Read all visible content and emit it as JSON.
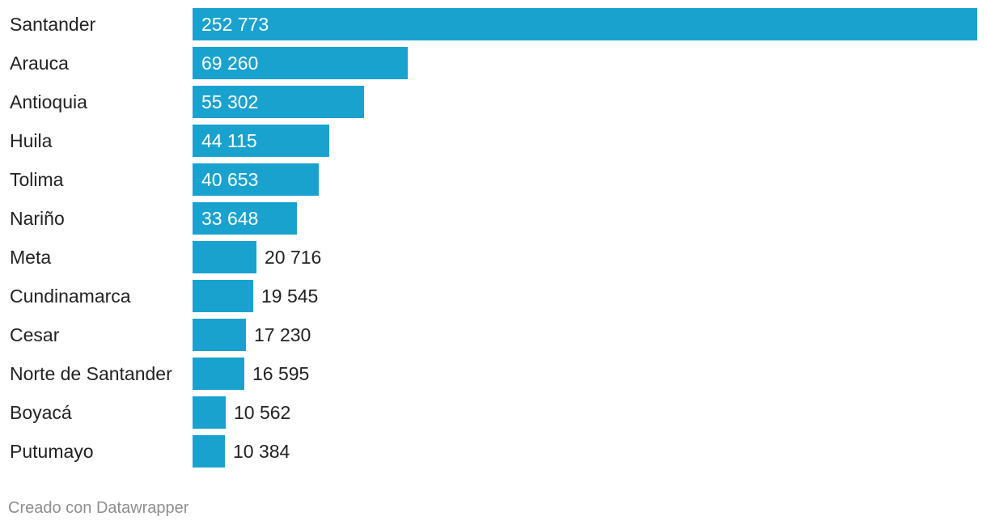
{
  "chart_data": {
    "type": "bar",
    "orientation": "horizontal",
    "title": "",
    "xlabel": "",
    "ylabel": "",
    "xlim": [
      0,
      252773
    ],
    "categories": [
      "Santander",
      "Arauca",
      "Antioquia",
      "Huila",
      "Tolima",
      "Nariño",
      "Meta",
      "Cundinamarca",
      "Cesar",
      "Norte de Santander",
      "Boyacá",
      "Putumayo"
    ],
    "values": [
      252773,
      69260,
      55302,
      44115,
      40653,
      33648,
      20716,
      19545,
      17230,
      16595,
      10562,
      10384
    ],
    "value_labels": [
      "252 773",
      "69 260",
      "55 302",
      "44 115",
      "40 653",
      "33 648",
      "20 716",
      "19 545",
      "17 230",
      "16 595",
      "10 562",
      "10 384"
    ],
    "bar_color": "#1aa2cf"
  },
  "footer": {
    "credit": "Creado con Datawrapper"
  }
}
